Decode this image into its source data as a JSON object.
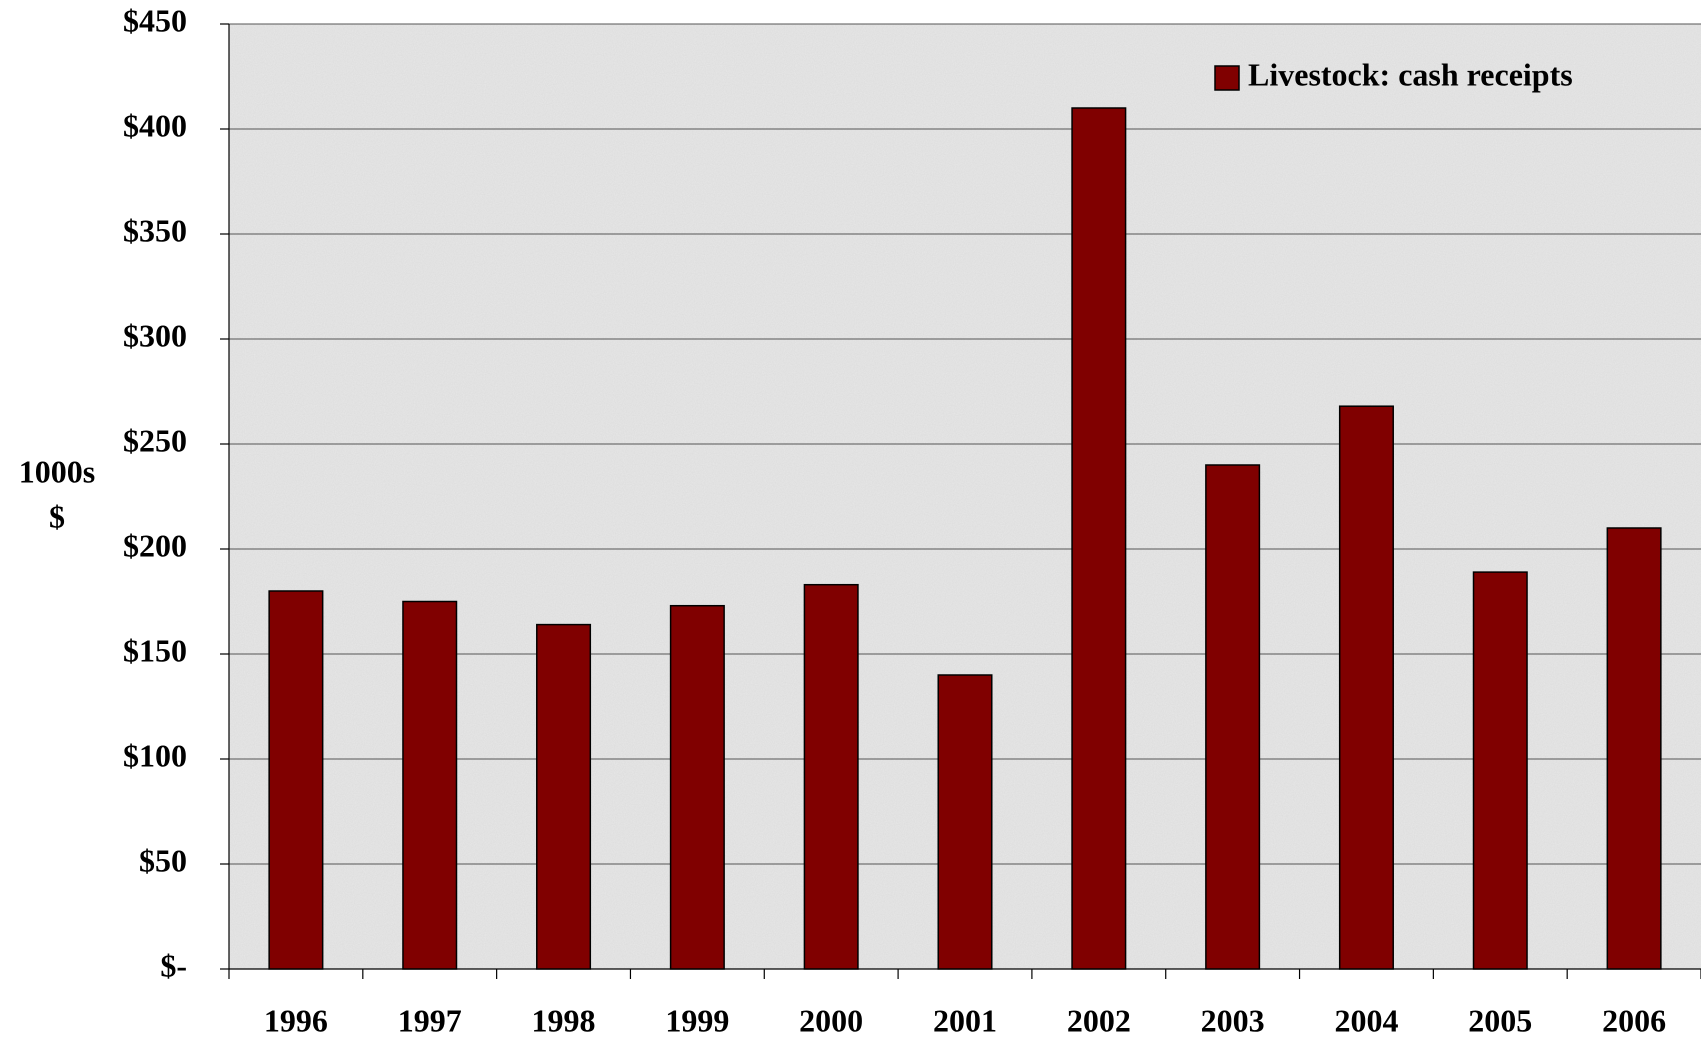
{
  "chart_data": {
    "type": "bar",
    "ylabel": [
      "1000s",
      "$"
    ],
    "categories": [
      "1996",
      "1997",
      "1998",
      "1999",
      "2000",
      "2001",
      "2002",
      "2003",
      "2004",
      "2005",
      "2006"
    ],
    "series": [
      {
        "name": "Livestock: cash receipts",
        "color": "#800000",
        "values": [
          180,
          175,
          164,
          173,
          183,
          140,
          410,
          240,
          268,
          189,
          210
        ]
      }
    ],
    "ylim": [
      0,
      450
    ],
    "yticks": [
      {
        "value": 0,
        "label": "$-"
      },
      {
        "value": 50,
        "label": "$50"
      },
      {
        "value": 100,
        "label": "$100"
      },
      {
        "value": 150,
        "label": "$150"
      },
      {
        "value": 200,
        "label": "$200"
      },
      {
        "value": 250,
        "label": "$250"
      },
      {
        "value": 300,
        "label": "$300"
      },
      {
        "value": 350,
        "label": "$350"
      },
      {
        "value": 400,
        "label": "$400"
      },
      {
        "value": 450,
        "label": "$450"
      }
    ],
    "grid": true,
    "legend": "top-right"
  }
}
